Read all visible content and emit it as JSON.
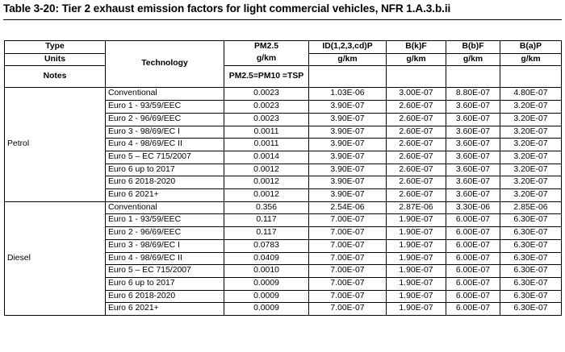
{
  "caption": "Table 3-20: Tier 2 exhaust emission factors for light commercial vehicles, NFR 1.A.3.b.ii",
  "header": {
    "type_label": "Type",
    "units_label": "Units",
    "notes_label": "Notes",
    "technology_label": "Technology",
    "columns": [
      "PM2.5",
      "ID(1,2,3,cd)P",
      "B(k)F",
      "B(b)F",
      "B(a)P"
    ],
    "units": [
      "g/km",
      "g/km",
      "g/km",
      "g/km",
      "g/km"
    ],
    "notes": [
      "PM2.5=PM10 =TSP",
      "",
      "",
      "",
      ""
    ]
  },
  "groups": [
    {
      "type": "Petrol",
      "rows": [
        {
          "tech": "Conventional",
          "values": [
            "0.0023",
            "1.03E-06",
            "3.00E-07",
            "8.80E-07",
            "4.80E-07"
          ]
        },
        {
          "tech": "Euro 1 - 93/59/EEC",
          "values": [
            "0.0023",
            "3.90E-07",
            "2.60E-07",
            "3.60E-07",
            "3.20E-07"
          ]
        },
        {
          "tech": "Euro 2 - 96/69/EEC",
          "values": [
            "0.0023",
            "3.90E-07",
            "2.60E-07",
            "3.60E-07",
            "3.20E-07"
          ]
        },
        {
          "tech": "Euro 3 - 98/69/EC I",
          "values": [
            "0.0011",
            "3.90E-07",
            "2.60E-07",
            "3.60E-07",
            "3.20E-07"
          ]
        },
        {
          "tech": "Euro 4 - 98/69/EC II",
          "values": [
            "0.0011",
            "3.90E-07",
            "2.60E-07",
            "3.60E-07",
            "3.20E-07"
          ]
        },
        {
          "tech": "Euro 5 – EC 715/2007",
          "values": [
            "0.0014",
            "3.90E-07",
            "2.60E-07",
            "3.60E-07",
            "3.20E-07"
          ]
        },
        {
          "tech": "Euro 6 up to 2017",
          "values": [
            "0.0012",
            "3.90E-07",
            "2.60E-07",
            "3.60E-07",
            "3.20E-07"
          ]
        },
        {
          "tech": "Euro 6 2018-2020",
          "values": [
            "0.0012",
            "3.90E-07",
            "2.60E-07",
            "3.60E-07",
            "3.20E-07"
          ]
        },
        {
          "tech": "Euro 6 2021+",
          "values": [
            "0.0012",
            "3.90E-07",
            "2.60E-07",
            "3.60E-07",
            "3.20E-07"
          ]
        }
      ]
    },
    {
      "type": "Diesel",
      "rows": [
        {
          "tech": "Conventional",
          "values": [
            "0.356",
            "2.54E-06",
            "2.87E-06",
            "3.30E-06",
            "2.85E-06"
          ]
        },
        {
          "tech": "Euro 1 - 93/59/EEC",
          "values": [
            "0.117",
            "7.00E-07",
            "1.90E-07",
            "6.00E-07",
            "6.30E-07"
          ]
        },
        {
          "tech": "Euro 2 - 96/69/EEC",
          "values": [
            "0.117",
            "7.00E-07",
            "1.90E-07",
            "6.00E-07",
            "6.30E-07"
          ]
        },
        {
          "tech": "Euro 3 - 98/69/EC I",
          "values": [
            "0.0783",
            "7.00E-07",
            "1.90E-07",
            "6.00E-07",
            "6.30E-07"
          ]
        },
        {
          "tech": "Euro 4 - 98/69/EC II",
          "values": [
            "0.0409",
            "7.00E-07",
            "1.90E-07",
            "6.00E-07",
            "6.30E-07"
          ]
        },
        {
          "tech": "Euro 5 – EC 715/2007",
          "values": [
            "0.0010",
            "7.00E-07",
            "1.90E-07",
            "6.00E-07",
            "6.30E-07"
          ]
        },
        {
          "tech": "Euro 6 up to 2017",
          "values": [
            "0.0009",
            "7.00E-07",
            "1.90E-07",
            "6.00E-07",
            "6.30E-07"
          ]
        },
        {
          "tech": "Euro 6 2018-2020",
          "values": [
            "0.0009",
            "7.00E-07",
            "1.90E-07",
            "6.00E-07",
            "6.30E-07"
          ]
        },
        {
          "tech": "Euro 6 2021+",
          "values": [
            "0.0009",
            "7.00E-07",
            "1.90E-07",
            "6.00E-07",
            "6.30E-07"
          ]
        }
      ]
    }
  ]
}
